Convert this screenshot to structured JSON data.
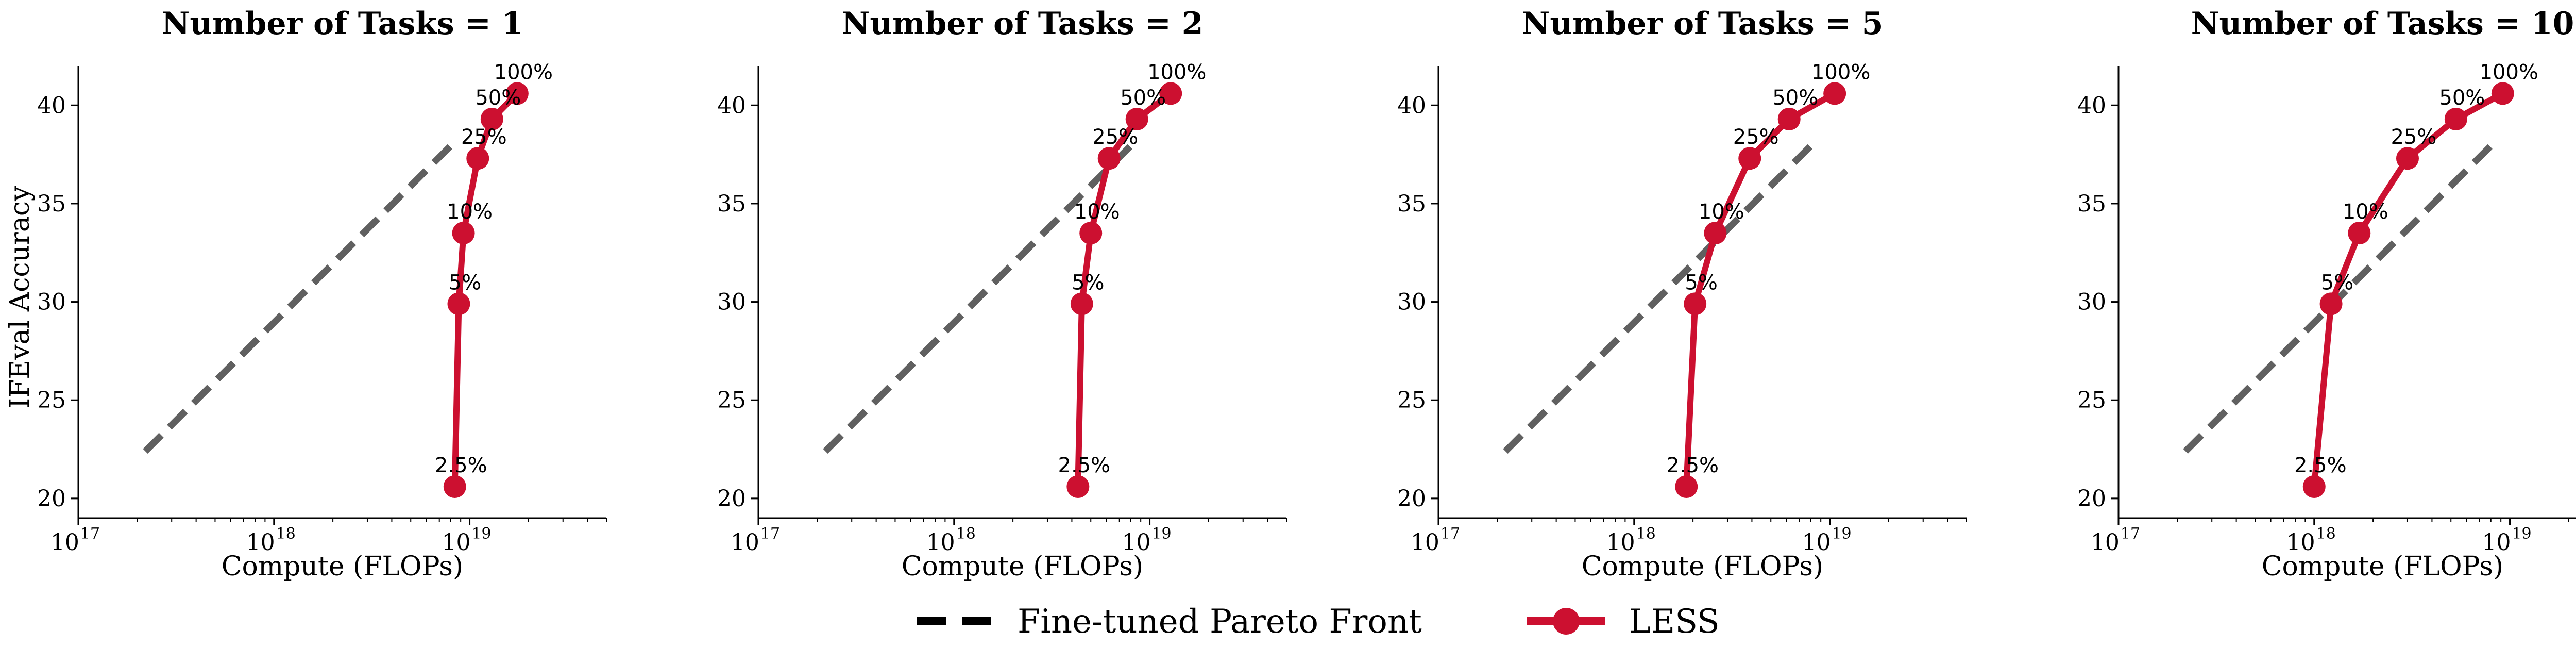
{
  "chart_data": [
    {
      "type": "line",
      "title": "Number of Tasks = 1",
      "xlabel": "Compute (FLOPs)",
      "ylabel": "IFEval Accuracy",
      "x_scale": "log",
      "xlim": [
        1e+17,
        5e+19
      ],
      "ylim": [
        19,
        42
      ],
      "x_ticks": [
        "17",
        "18",
        "19"
      ],
      "y_ticks": [
        20,
        25,
        30,
        35,
        40
      ],
      "series": [
        {
          "name": "Fine-tuned Pareto Front",
          "style": "dashed",
          "color": "#606060",
          "points": [
            {
              "x": 2.2e+17,
              "y": 22.4
            },
            {
              "x": 8.5e+18,
              "y": 38.2
            }
          ]
        },
        {
          "name": "LESS",
          "style": "solid-marker",
          "color": "#cc1030",
          "points": [
            {
              "x": 8.4e+18,
              "y": 20.6,
              "label": "2.5%"
            },
            {
              "x": 8.8e+18,
              "y": 29.9,
              "label": "5%"
            },
            {
              "x": 9.3e+18,
              "y": 33.5,
              "label": "10%"
            },
            {
              "x": 1.1e+19,
              "y": 37.3,
              "label": "25%"
            },
            {
              "x": 1.3e+19,
              "y": 39.3,
              "label": "50%"
            },
            {
              "x": 1.75e+19,
              "y": 40.6,
              "label": "100%"
            }
          ]
        }
      ]
    },
    {
      "type": "line",
      "title": "Number of Tasks = 2",
      "xlabel": "Compute (FLOPs)",
      "ylabel": "",
      "x_scale": "log",
      "xlim": [
        1e+17,
        5e+19
      ],
      "ylim": [
        19,
        42
      ],
      "x_ticks": [
        "17",
        "18",
        "19"
      ],
      "y_ticks": [
        20,
        25,
        30,
        35,
        40
      ],
      "series": [
        {
          "name": "Fine-tuned Pareto Front",
          "style": "dashed",
          "color": "#606060",
          "points": [
            {
              "x": 2.2e+17,
              "y": 22.4
            },
            {
              "x": 8.5e+18,
              "y": 38.2
            }
          ]
        },
        {
          "name": "LESS",
          "style": "solid-marker",
          "color": "#cc1030",
          "points": [
            {
              "x": 4.3e+18,
              "y": 20.6,
              "label": "2.5%"
            },
            {
              "x": 4.5e+18,
              "y": 29.9,
              "label": "5%"
            },
            {
              "x": 5e+18,
              "y": 33.5,
              "label": "10%"
            },
            {
              "x": 6.2e+18,
              "y": 37.3,
              "label": "25%"
            },
            {
              "x": 8.6e+18,
              "y": 39.3,
              "label": "50%"
            },
            {
              "x": 1.28e+19,
              "y": 40.6,
              "label": "100%"
            }
          ]
        }
      ]
    },
    {
      "type": "line",
      "title": "Number of Tasks = 5",
      "xlabel": "Compute (FLOPs)",
      "ylabel": "",
      "x_scale": "log",
      "xlim": [
        1e+17,
        5e+19
      ],
      "ylim": [
        19,
        42
      ],
      "x_ticks": [
        "17",
        "18",
        "19"
      ],
      "y_ticks": [
        20,
        25,
        30,
        35,
        40
      ],
      "series": [
        {
          "name": "Fine-tuned Pareto Front",
          "style": "dashed",
          "color": "#606060",
          "points": [
            {
              "x": 2.2e+17,
              "y": 22.4
            },
            {
              "x": 8.5e+18,
              "y": 38.2
            }
          ]
        },
        {
          "name": "LESS",
          "style": "solid-marker",
          "color": "#cc1030",
          "points": [
            {
              "x": 1.85e+18,
              "y": 20.6,
              "label": "2.5%"
            },
            {
              "x": 2.05e+18,
              "y": 29.9,
              "label": "5%"
            },
            {
              "x": 2.6e+18,
              "y": 33.5,
              "label": "10%"
            },
            {
              "x": 3.9e+18,
              "y": 37.3,
              "label": "25%"
            },
            {
              "x": 6.2e+18,
              "y": 39.3,
              "label": "50%"
            },
            {
              "x": 1.06e+19,
              "y": 40.6,
              "label": "100%"
            }
          ]
        }
      ]
    },
    {
      "type": "line",
      "title": "Number of Tasks = 10",
      "xlabel": "Compute (FLOPs)",
      "ylabel": "",
      "x_scale": "log",
      "xlim": [
        1e+17,
        5e+19
      ],
      "ylim": [
        19,
        42
      ],
      "x_ticks": [
        "17",
        "18",
        "19"
      ],
      "y_ticks": [
        20,
        25,
        30,
        35,
        40
      ],
      "series": [
        {
          "name": "Fine-tuned Pareto Front",
          "style": "dashed",
          "color": "#606060",
          "points": [
            {
              "x": 2.2e+17,
              "y": 22.4
            },
            {
              "x": 8.5e+18,
              "y": 38.2
            }
          ]
        },
        {
          "name": "LESS",
          "style": "solid-marker",
          "color": "#cc1030",
          "points": [
            {
              "x": 1e+18,
              "y": 20.6,
              "label": "2.5%"
            },
            {
              "x": 1.22e+18,
              "y": 29.9,
              "label": "5%"
            },
            {
              "x": 1.7e+18,
              "y": 33.5,
              "label": "10%"
            },
            {
              "x": 3e+18,
              "y": 37.3,
              "label": "25%"
            },
            {
              "x": 5.3e+18,
              "y": 39.3,
              "label": "50%"
            },
            {
              "x": 9.2e+18,
              "y": 40.6,
              "label": "100%"
            }
          ]
        }
      ]
    }
  ],
  "legend": {
    "placement": "bottom-center",
    "items": [
      {
        "label": "Fine-tuned Pareto Front",
        "style": "dashed",
        "color": "#000000"
      },
      {
        "label": "LESS",
        "style": "solid-marker",
        "color": "#cc1030"
      }
    ]
  }
}
